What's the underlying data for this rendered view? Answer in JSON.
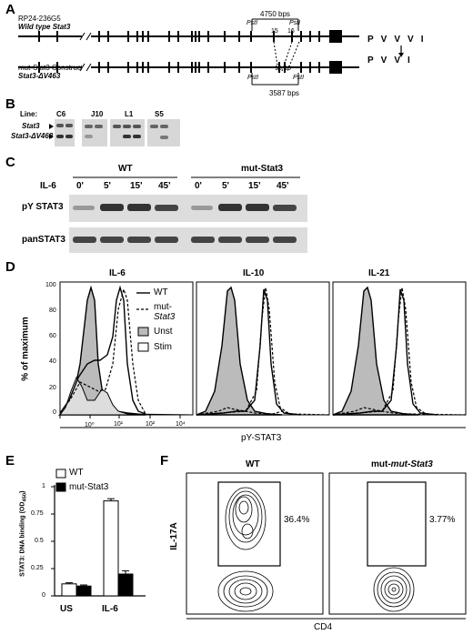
{
  "panels": {
    "A": {
      "letter": "A",
      "wt_bac": "RP24-236G5",
      "wt_name": "Wild type Stat3",
      "wt_bps": "4750 bps",
      "mut_name1": "mut-Stat3 Construct",
      "mut_name2": "Stat3-ΔV463",
      "mut_bps": "3587 bps",
      "psti": "PstI",
      "exon15": "15",
      "exon16": "16",
      "exon1516": "15-16",
      "wt_seq": [
        "P",
        "V",
        "V",
        "V",
        "I"
      ],
      "mut_seq": [
        "P",
        "V",
        "V",
        "I"
      ]
    },
    "B": {
      "letter": "B",
      "line_label": "Line:",
      "lines": [
        "C6",
        "J10",
        "L1",
        "S5"
      ],
      "band1": "Stat3",
      "band2": "Stat3-ΔV463"
    },
    "C": {
      "letter": "C",
      "groups": [
        "WT",
        "mut-Stat3"
      ],
      "il6": "IL-6",
      "times": [
        "0'",
        "5'",
        "15'",
        "45'",
        "0'",
        "5'",
        "15'",
        "45'"
      ],
      "rows": [
        "pY STAT3",
        "panSTAT3"
      ]
    },
    "D": {
      "letter": "D",
      "titles": [
        "IL-6",
        "IL-10",
        "IL-21"
      ],
      "ylabel": "% of maximum",
      "yticks": [
        "100",
        "80",
        "60",
        "40",
        "20",
        "0"
      ],
      "xticks": [
        "10⁰",
        "10¹",
        "10²",
        "10³",
        "10⁴"
      ],
      "xlabel": "pY-STAT3",
      "legend": [
        "WT",
        "mut-",
        "Stat3",
        "Unst",
        "Stim"
      ]
    },
    "E": {
      "letter": "E",
      "ylabel": "STAT3: DNA binding (OD",
      "ysub": "450",
      "legend": [
        "WT",
        "mut-Stat3"
      ],
      "yticks": [
        "0",
        "0.25",
        "0.5",
        "0.75",
        "1"
      ],
      "categories": [
        "US",
        "IL-6"
      ]
    },
    "F": {
      "letter": "F",
      "titles": [
        "WT",
        "mut-Stat3"
      ],
      "ylabel": "IL-17A",
      "xlabel": "CD4",
      "percents": [
        "36.4%",
        "3.77%"
      ]
    }
  },
  "chart_data": [
    {
      "type": "bar",
      "categories": [
        "US",
        "IL-6"
      ],
      "series": [
        {
          "name": "WT",
          "values": [
            0.11,
            0.87
          ]
        },
        {
          "name": "mut-Stat3",
          "values": [
            0.09,
            0.2
          ]
        }
      ],
      "ylabel": "STAT3: DNA binding (OD450)",
      "ylim": [
        0,
        1
      ],
      "legend": "top-left"
    }
  ]
}
